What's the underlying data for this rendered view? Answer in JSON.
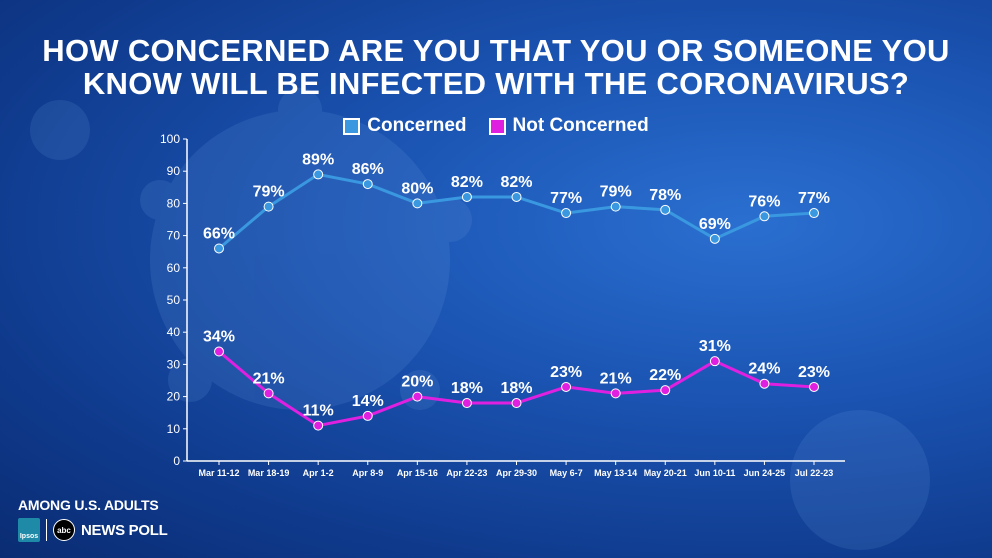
{
  "title_lines": [
    "HOW CONCERNED ARE YOU THAT YOU OR SOMEONE YOU",
    "KNOW WILL BE INFECTED WITH THE CORONAVIRUS?"
  ],
  "legend": [
    {
      "label": "Concerned",
      "color": "#3a98e0"
    },
    {
      "label": "Not Concerned",
      "color": "#e020e0"
    }
  ],
  "footer": {
    "note": "AMONG U.S. ADULTS",
    "ipsos_label": "Ipsos",
    "abc_label": "abc",
    "poll_label": "NEWS POLL"
  },
  "chart_data": {
    "type": "line",
    "categories": [
      "Mar 11-12",
      "Mar 18-19",
      "Apr 1-2",
      "Apr 8-9",
      "Apr 15-16",
      "Apr 22-23",
      "Apr 29-30",
      "May 6-7",
      "May 13-14",
      "May 20-21",
      "Jun 10-11",
      "Jun 24-25",
      "Jul 22-23"
    ],
    "series": [
      {
        "name": "Concerned",
        "color": "#3a98e0",
        "values": [
          66,
          79,
          89,
          86,
          80,
          82,
          82,
          77,
          79,
          78,
          69,
          76,
          77
        ]
      },
      {
        "name": "Not Concerned",
        "color": "#e020e0",
        "values": [
          34,
          21,
          11,
          14,
          20,
          18,
          18,
          23,
          21,
          22,
          31,
          24,
          23
        ]
      }
    ],
    "value_suffix": "%",
    "ylim": [
      0,
      100
    ],
    "yticks": [
      0,
      10,
      20,
      30,
      40,
      50,
      60,
      70,
      80,
      90,
      100
    ],
    "grid": false,
    "legend_position": "top-center"
  }
}
